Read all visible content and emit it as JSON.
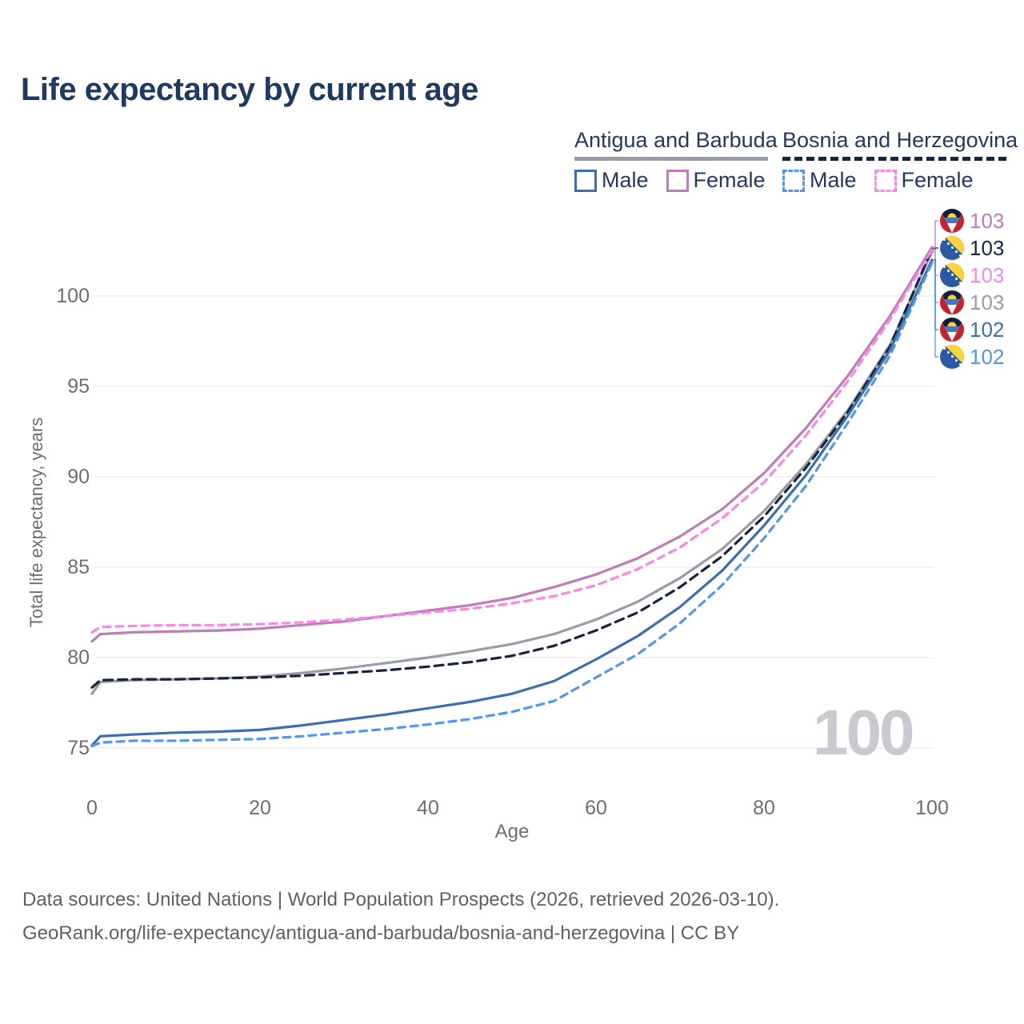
{
  "title": "Life expectancy by current age",
  "watermark": "100",
  "axes": {
    "x_label": "Age",
    "y_label": "Total life expectancy, years"
  },
  "legend": {
    "groups": [
      {
        "country": "Antigua and Barbuda",
        "underline_color": "#9b9ba3",
        "underline_style": "solid",
        "items": [
          {
            "label": "Male",
            "color": "#3a6fb5",
            "dashed": false
          },
          {
            "label": "Female",
            "color": "#bf7cba",
            "dashed": false
          }
        ]
      },
      {
        "country": "Bosnia and Herzegovina",
        "underline_color": "#16243f",
        "underline_style": "dashed",
        "items": [
          {
            "label": "Male",
            "color": "#4f97f3",
            "dashed": true
          },
          {
            "label": "Female",
            "color": "#fc86e8",
            "dashed": true
          }
        ]
      }
    ]
  },
  "footer": {
    "line1": "Data sources: United Nations | World Population Prospects (2026, retrieved 2026-03-10).",
    "line2": "GeoRank.org/life-expectancy/antigua-and-barbuda/bosnia-and-herzegovina | CC BY"
  },
  "colors": {
    "title_text": "#1f3a60",
    "legend_text": "#243a5c",
    "axis_text": "#6d6d74",
    "grid_line": "#e9e9ef",
    "watermark": "#c9c9cf",
    "footer_text": "#5c6067"
  },
  "chart_data": {
    "type": "line",
    "title": "Life expectancy by current age",
    "xlabel": "Age",
    "ylabel": "Total life expectancy, years",
    "xlim": [
      0,
      100
    ],
    "ylim": [
      73.5,
      104
    ],
    "xticks": [
      0,
      20,
      40,
      60,
      80,
      100
    ],
    "yticks": [
      75,
      80,
      85,
      90,
      95,
      100
    ],
    "grid": "horizontal",
    "legend_position": "top-right",
    "x": [
      0,
      1,
      5,
      10,
      15,
      20,
      25,
      30,
      35,
      40,
      45,
      50,
      55,
      60,
      65,
      70,
      75,
      80,
      85,
      90,
      95,
      100
    ],
    "series": [
      {
        "name": "Antigua and Barbuda — Female",
        "country": "Antigua and Barbuda",
        "sex": "Female",
        "color": "#bf7cba",
        "dash": null,
        "flag": "antigua",
        "label_row": 0,
        "end_label": "103",
        "z": 2,
        "values": [
          80.9,
          81.3,
          81.4,
          81.45,
          81.5,
          81.6,
          81.8,
          82.0,
          82.3,
          82.6,
          82.9,
          83.3,
          83.9,
          84.6,
          85.5,
          86.7,
          88.2,
          90.2,
          92.7,
          95.6,
          98.9,
          102.7
        ]
      },
      {
        "name": "Bosnia and Herzegovina — Both sexes",
        "country": "Bosnia and Herzegovina",
        "sex": "Both sexes",
        "color": "#16243f",
        "dash": [
          11,
          7
        ],
        "flag": "bosnia",
        "label_row": 1,
        "end_label": "103",
        "z": 1,
        "values": [
          78.35,
          78.75,
          78.8,
          78.8,
          78.85,
          78.9,
          79.0,
          79.15,
          79.3,
          79.5,
          79.75,
          80.1,
          80.65,
          81.5,
          82.5,
          83.9,
          85.6,
          87.8,
          90.5,
          93.6,
          97.2,
          102.6
        ]
      },
      {
        "name": "Bosnia and Herzegovina — Female",
        "country": "Bosnia and Herzegovina",
        "sex": "Female",
        "color": "#fc86e8",
        "dash": [
          9,
          7
        ],
        "flag": "bosnia",
        "label_row": 2,
        "end_label": "103",
        "z": 3,
        "values": [
          81.4,
          81.7,
          81.75,
          81.8,
          81.8,
          81.85,
          81.95,
          82.1,
          82.3,
          82.5,
          82.7,
          83.0,
          83.4,
          84.0,
          84.9,
          86.1,
          87.7,
          89.7,
          92.3,
          95.3,
          98.7,
          102.55
        ]
      },
      {
        "name": "Antigua and Barbuda — Both sexes",
        "country": "Antigua and Barbuda",
        "sex": "Both sexes",
        "color": "#9b9ba3",
        "dash": null,
        "flag": "antigua",
        "label_row": 3,
        "end_label": "103",
        "z": 0,
        "values": [
          78.0,
          78.65,
          78.75,
          78.8,
          78.85,
          78.95,
          79.15,
          79.4,
          79.7,
          80.0,
          80.35,
          80.75,
          81.3,
          82.1,
          83.1,
          84.4,
          86.0,
          88.1,
          90.7,
          93.7,
          97.3,
          102.45
        ]
      },
      {
        "name": "Antigua and Barbuda — Male",
        "country": "Antigua and Barbuda",
        "sex": "Male",
        "color": "#3a6fb5",
        "dash": null,
        "flag": "antigua",
        "label_row": 4,
        "end_label": "102",
        "z": 4,
        "values": [
          75.15,
          75.65,
          75.75,
          75.85,
          75.9,
          76.0,
          76.25,
          76.55,
          76.85,
          77.2,
          77.55,
          78.0,
          78.7,
          79.9,
          81.2,
          82.8,
          84.8,
          87.3,
          90.1,
          93.4,
          97.0,
          102.0
        ]
      },
      {
        "name": "Bosnia and Herzegovina — Male",
        "country": "Bosnia and Herzegovina",
        "sex": "Male",
        "color": "#4f97f3",
        "dash": [
          9,
          7
        ],
        "flag": "bosnia",
        "label_row": 5,
        "end_label": "102",
        "z": 5,
        "values": [
          75.1,
          75.3,
          75.4,
          75.4,
          75.45,
          75.5,
          75.65,
          75.85,
          76.05,
          76.3,
          76.6,
          77.0,
          77.6,
          78.9,
          80.2,
          81.9,
          84.0,
          86.6,
          89.5,
          93.0,
          96.7,
          101.85
        ]
      }
    ]
  }
}
